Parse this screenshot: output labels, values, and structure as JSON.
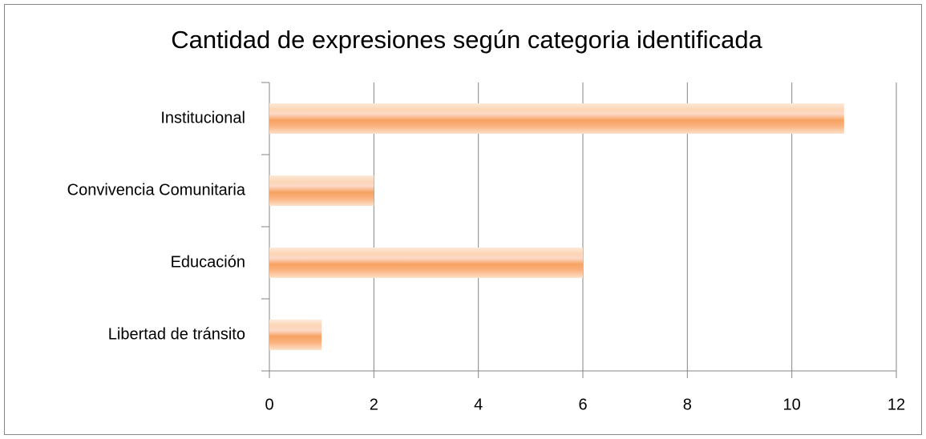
{
  "chart_data": {
    "type": "bar",
    "orientation": "horizontal",
    "title": "Cantidad de expresiones según categoria identificada",
    "categories": [
      "Institucional",
      "Convivencia Comunitaria",
      "Educación",
      "Libertad de tránsito"
    ],
    "values": [
      11,
      2,
      6,
      1
    ],
    "color": "#f79646",
    "xlim": [
      0,
      12
    ],
    "xticks": [
      0,
      2,
      4,
      6,
      8,
      10,
      12
    ],
    "grid": true
  }
}
